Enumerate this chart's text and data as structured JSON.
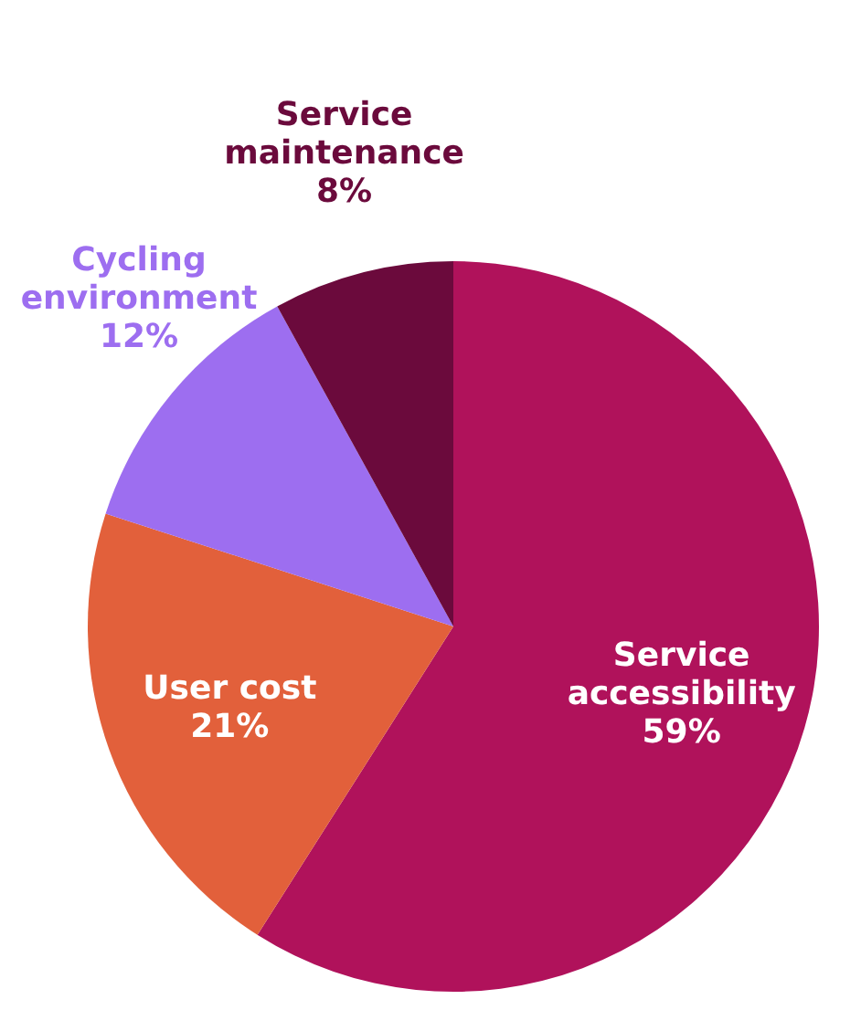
{
  "chart_data": {
    "type": "pie",
    "categories": [
      "Service accessibility",
      "User cost",
      "Cycling environment",
      "Service maintenance"
    ],
    "values": [
      59,
      21,
      12,
      8
    ],
    "value_labels": [
      "59%",
      "21%",
      "12%",
      "8%"
    ],
    "colors": [
      "#b0125b",
      "#e2603b",
      "#9d6ef0",
      "#6b0a3c"
    ]
  }
}
